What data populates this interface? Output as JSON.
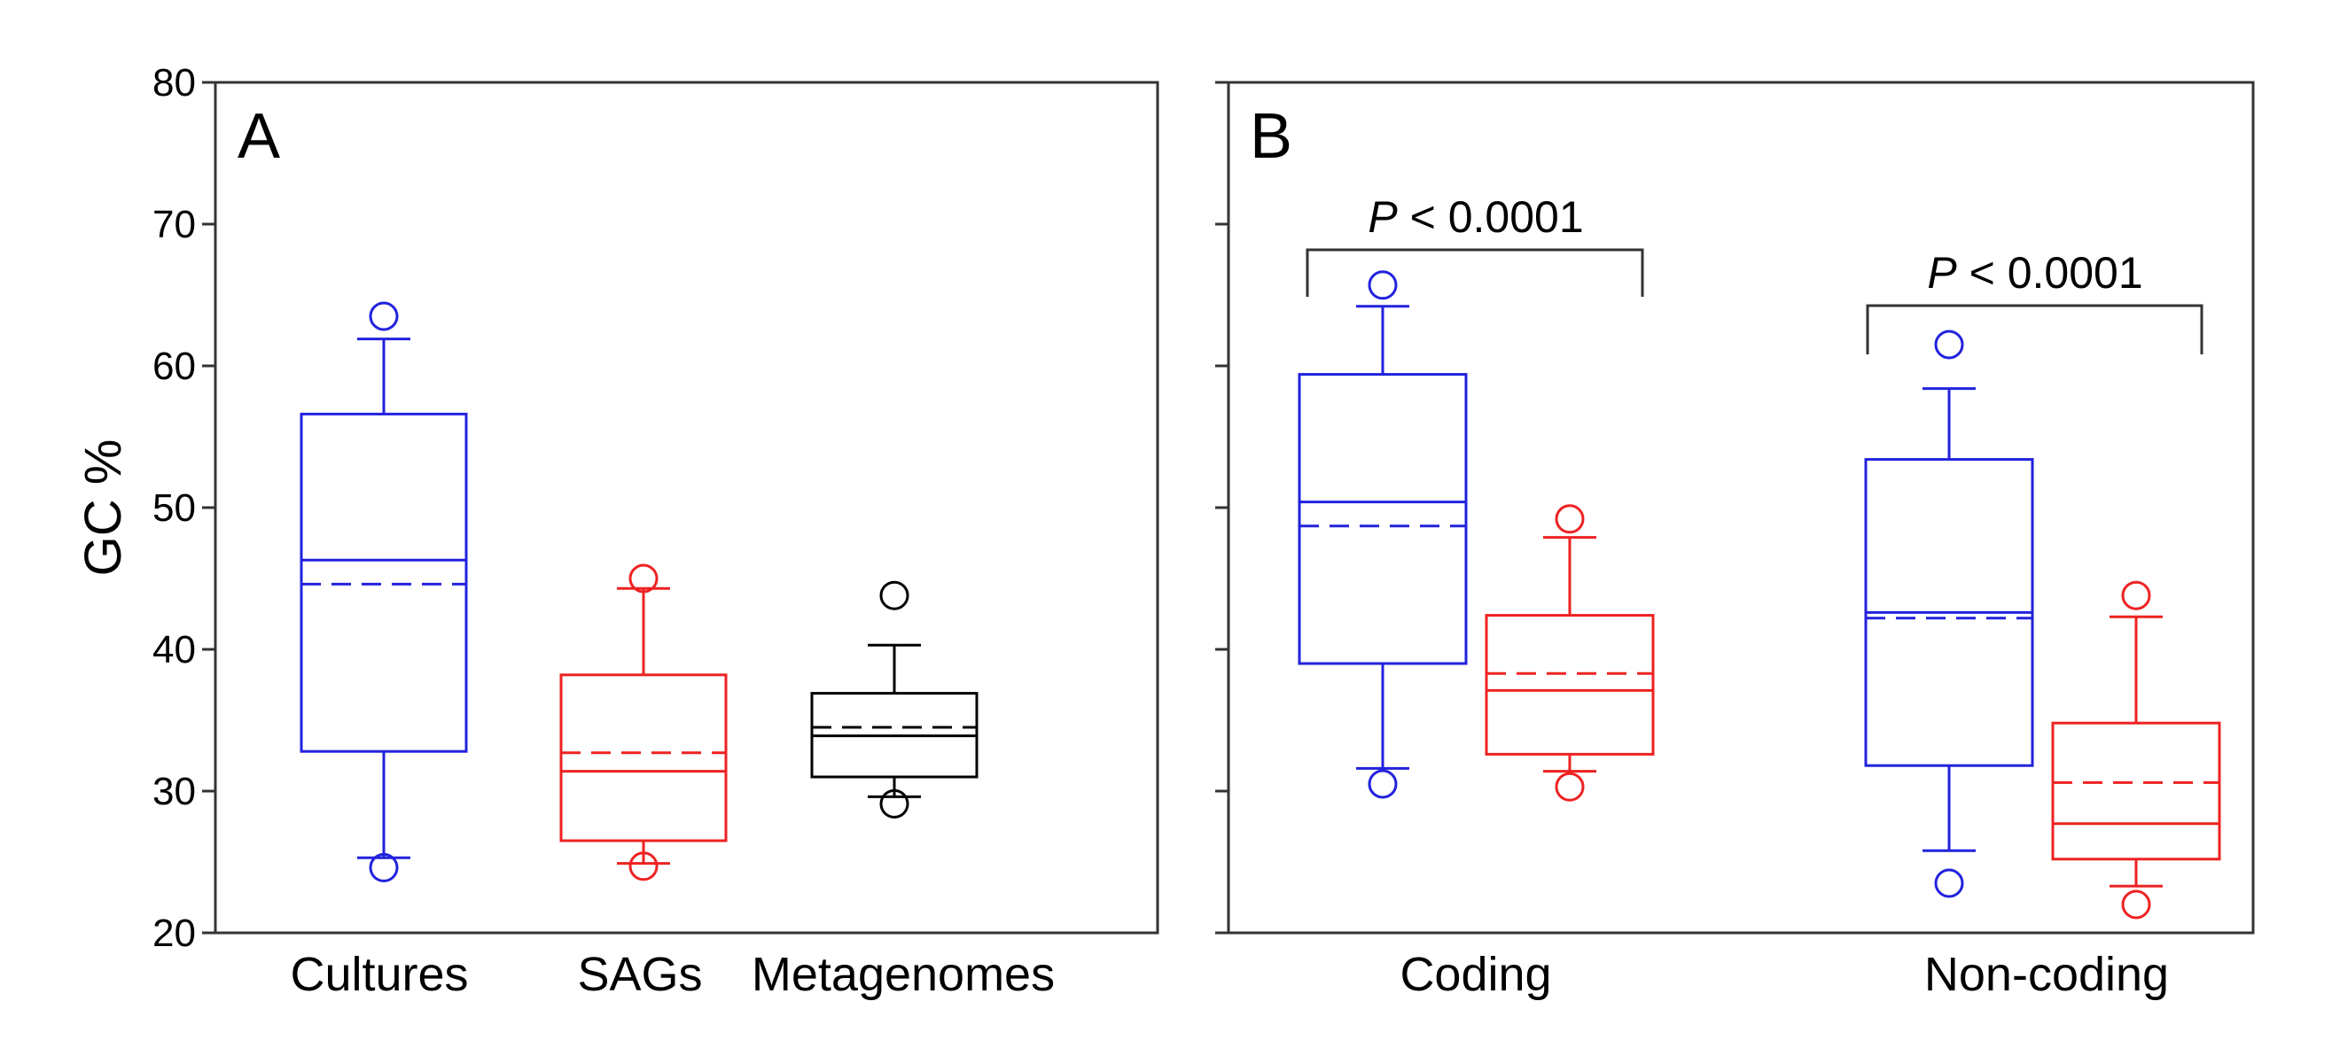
{
  "chart_data": [
    {
      "panel": "A",
      "type": "box",
      "ylabel": "GC %",
      "ylim": [
        20,
        80
      ],
      "yticks": [
        20,
        30,
        40,
        50,
        60,
        70,
        80
      ],
      "categories": [
        "Cultures",
        "SAGs",
        "Metagenomes"
      ],
      "boxes": [
        {
          "category": "Cultures",
          "color": "#2222dd",
          "whisker_low": 25.3,
          "q1": 32.8,
          "median": 46.3,
          "mean": 44.6,
          "q3": 56.6,
          "whisker_high": 61.9,
          "outliers": [
            24.6,
            63.5
          ]
        },
        {
          "category": "SAGs",
          "color": "#ee2222",
          "whisker_low": 24.9,
          "q1": 26.5,
          "median": 31.4,
          "mean": 32.7,
          "q3": 38.2,
          "whisker_high": 44.3,
          "outliers": [
            24.7,
            45.0
          ]
        },
        {
          "category": "Metagenomes",
          "color": "#000000",
          "whisker_low": 29.6,
          "q1": 31.0,
          "median": 33.9,
          "mean": 34.5,
          "q3": 36.9,
          "whisker_high": 40.3,
          "outliers": [
            29.1,
            43.8
          ]
        }
      ]
    },
    {
      "panel": "B",
      "type": "box",
      "ylim": [
        20,
        80
      ],
      "yticks": [
        20,
        30,
        40,
        50,
        60,
        70,
        80
      ],
      "categories": [
        "Coding",
        "Non-coding"
      ],
      "boxes": [
        {
          "category": "Coding",
          "color": "#2222dd",
          "whisker_low": 31.6,
          "q1": 39.0,
          "median": 50.4,
          "mean": 48.7,
          "q3": 59.4,
          "whisker_high": 64.2,
          "outliers": [
            30.5,
            65.7
          ]
        },
        {
          "category": "Coding",
          "color": "#ee2222",
          "whisker_low": 31.4,
          "q1": 32.6,
          "median": 37.1,
          "mean": 38.3,
          "q3": 42.4,
          "whisker_high": 47.9,
          "outliers": [
            30.3,
            49.2
          ]
        },
        {
          "category": "Non-coding",
          "color": "#2222dd",
          "whisker_low": 25.8,
          "q1": 31.8,
          "median": 42.6,
          "mean": 42.2,
          "q3": 53.4,
          "whisker_high": 58.4,
          "outliers": [
            23.5,
            61.5
          ]
        },
        {
          "category": "Non-coding",
          "color": "#ee2222",
          "whisker_low": 23.3,
          "q1": 25.2,
          "median": 27.7,
          "mean": 30.6,
          "q3": 34.8,
          "whisker_high": 42.3,
          "outliers": [
            22.0,
            43.8
          ]
        }
      ],
      "annotations": [
        {
          "category": "Coding",
          "text_italic": "P",
          "text_rest": " < 0.0001"
        },
        {
          "category": "Non-coding",
          "text_italic": "P",
          "text_rest": " < 0.0001"
        }
      ]
    }
  ]
}
